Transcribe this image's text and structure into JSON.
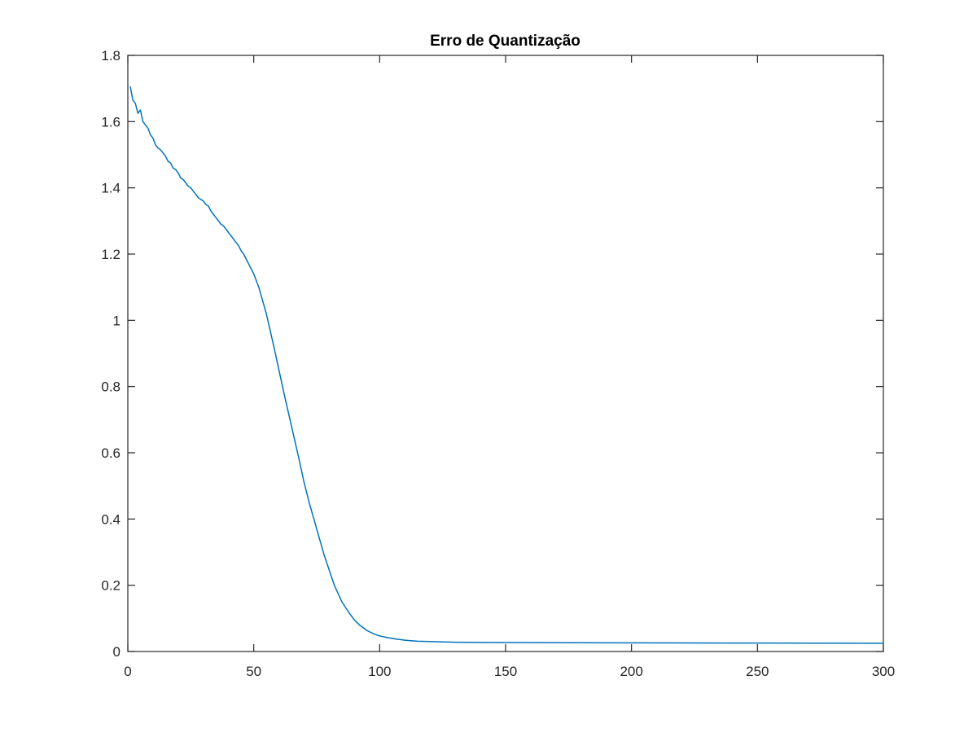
{
  "colors": {
    "background": "#ffffff",
    "axes": "#262626",
    "series": "#0072BD",
    "title": "#000000"
  },
  "chart_data": {
    "type": "line",
    "title": "Erro de Quantização",
    "xlabel": "",
    "ylabel": "",
    "xlim": [
      0,
      300
    ],
    "ylim": [
      0,
      1.8
    ],
    "grid": false,
    "box": true,
    "x_ticks": [
      0,
      50,
      100,
      150,
      200,
      250,
      300
    ],
    "x_tick_labels": [
      "0",
      "50",
      "100",
      "150",
      "200",
      "250",
      "300"
    ],
    "y_ticks": [
      0,
      0.2,
      0.4,
      0.6,
      0.8,
      1,
      1.2,
      1.4,
      1.6,
      1.8
    ],
    "y_tick_labels": [
      "0",
      "0.2",
      "0.4",
      "0.6",
      "0.8",
      "1",
      "1.2",
      "1.4",
      "1.6",
      "1.8"
    ],
    "series": [
      {
        "x": [
          1,
          2,
          3,
          4,
          5,
          6,
          7,
          8,
          9,
          10,
          11,
          12,
          13,
          14,
          15,
          16,
          17,
          18,
          19,
          20,
          21,
          22,
          23,
          24,
          25,
          26,
          27,
          28,
          29,
          30,
          31,
          32,
          33,
          34,
          35,
          36,
          37,
          38,
          39,
          40,
          41,
          42,
          43,
          44,
          45,
          46,
          47,
          48,
          50,
          52,
          55,
          58,
          60,
          62,
          65,
          68,
          70,
          72,
          75,
          78,
          80,
          82,
          85,
          88,
          90,
          92,
          95,
          98,
          100,
          103,
          106,
          110,
          115,
          120,
          125,
          130,
          140,
          150,
          175,
          200,
          250,
          300
        ],
        "y": [
          1.705,
          1.665,
          1.655,
          1.625,
          1.635,
          1.6,
          1.59,
          1.58,
          1.56,
          1.55,
          1.53,
          1.52,
          1.515,
          1.505,
          1.495,
          1.48,
          1.475,
          1.46,
          1.455,
          1.445,
          1.43,
          1.425,
          1.415,
          1.405,
          1.4,
          1.39,
          1.38,
          1.37,
          1.365,
          1.36,
          1.35,
          1.345,
          1.33,
          1.32,
          1.31,
          1.3,
          1.29,
          1.285,
          1.275,
          1.265,
          1.255,
          1.245,
          1.235,
          1.225,
          1.21,
          1.2,
          1.185,
          1.17,
          1.14,
          1.1,
          1.02,
          0.92,
          0.85,
          0.78,
          0.68,
          0.58,
          0.51,
          0.45,
          0.37,
          0.29,
          0.245,
          0.2,
          0.15,
          0.115,
          0.095,
          0.08,
          0.063,
          0.052,
          0.047,
          0.042,
          0.038,
          0.034,
          0.031,
          0.03,
          0.029,
          0.028,
          0.0275,
          0.027,
          0.0265,
          0.026,
          0.0255,
          0.025
        ]
      }
    ]
  }
}
